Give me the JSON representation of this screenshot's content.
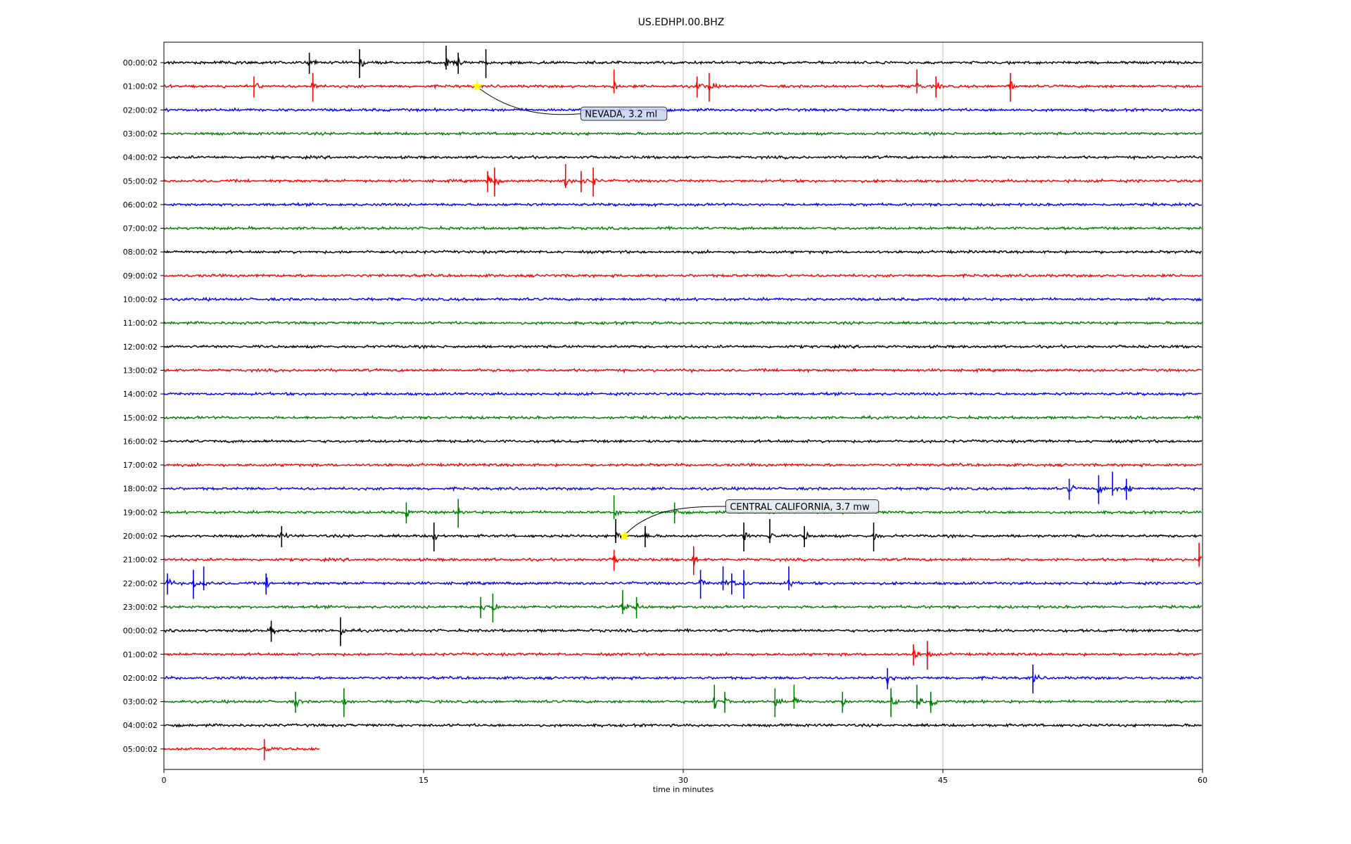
{
  "chart_data": {
    "type": "line",
    "title": "US.EDHPI.00.BHZ",
    "xlabel": "time in minutes",
    "xlim": [
      0,
      60
    ],
    "xticks": [
      0,
      15,
      30,
      45,
      60
    ],
    "grid": "vertical",
    "colors": [
      "#000000",
      "#ff0000",
      "#0000ff",
      "#008000"
    ],
    "row_labels": [
      "00:00:02",
      "01:00:02",
      "02:00:02",
      "03:00:02",
      "04:00:02",
      "05:00:02",
      "06:00:02",
      "07:00:02",
      "08:00:02",
      "09:00:02",
      "10:00:02",
      "11:00:02",
      "12:00:02",
      "13:00:02",
      "14:00:02",
      "15:00:02",
      "16:00:02",
      "17:00:02",
      "18:00:02",
      "19:00:02",
      "20:00:02",
      "21:00:02",
      "22:00:02",
      "23:00:02",
      "00:00:02",
      "01:00:02",
      "02:00:02",
      "03:00:02",
      "04:00:02",
      "05:00:02"
    ],
    "last_row_end_minute": 9.0,
    "events": [
      {
        "row": 0,
        "minutes": [
          8.4,
          11.3,
          16.3,
          17.0,
          18.6
        ]
      },
      {
        "row": 1,
        "minutes": [
          5.2,
          8.6,
          26.0,
          30.8,
          31.5,
          43.5,
          44.6,
          48.9
        ]
      },
      {
        "row": 5,
        "minutes": [
          18.7,
          19.1,
          23.2,
          24.1,
          24.8
        ]
      },
      {
        "row": 18,
        "minutes": [
          52.3,
          54.0,
          54.8,
          55.6
        ]
      },
      {
        "row": 19,
        "minutes": [
          14.0,
          17.0,
          26.0,
          29.5
        ]
      },
      {
        "row": 20,
        "minutes": [
          6.8,
          15.6,
          26.1,
          27.8,
          33.5,
          35.0,
          37.0,
          41.0
        ]
      },
      {
        "row": 21,
        "minutes": [
          26.0,
          30.6,
          59.8
        ]
      },
      {
        "row": 22,
        "minutes": [
          0.2,
          1.7,
          2.3,
          5.9,
          31.0,
          32.3,
          32.8,
          33.5,
          36.1
        ]
      },
      {
        "row": 23,
        "minutes": [
          18.3,
          19.0,
          26.5,
          27.3
        ]
      },
      {
        "row": 24,
        "minutes": [
          6.2,
          10.2
        ]
      },
      {
        "row": 25,
        "minutes": [
          43.3,
          44.1
        ]
      },
      {
        "row": 26,
        "minutes": [
          41.8,
          50.2
        ]
      },
      {
        "row": 27,
        "minutes": [
          7.6,
          10.4,
          31.8,
          32.4,
          35.3,
          36.4,
          39.2,
          42.0,
          43.5,
          44.3
        ]
      },
      {
        "row": 29,
        "minutes": [
          5.8
        ]
      }
    ],
    "annotations": [
      {
        "label": "NEVADA, 3.2 ml",
        "row": 1,
        "minute": 18.1,
        "box_bg": "#c9d3ee"
      },
      {
        "label": "CENTRAL CALIFORNIA, 3.7 mw",
        "row": 20,
        "minute": 26.6,
        "box_bg": "#dfe6ea"
      }
    ],
    "marker_color": "#ffff00"
  }
}
